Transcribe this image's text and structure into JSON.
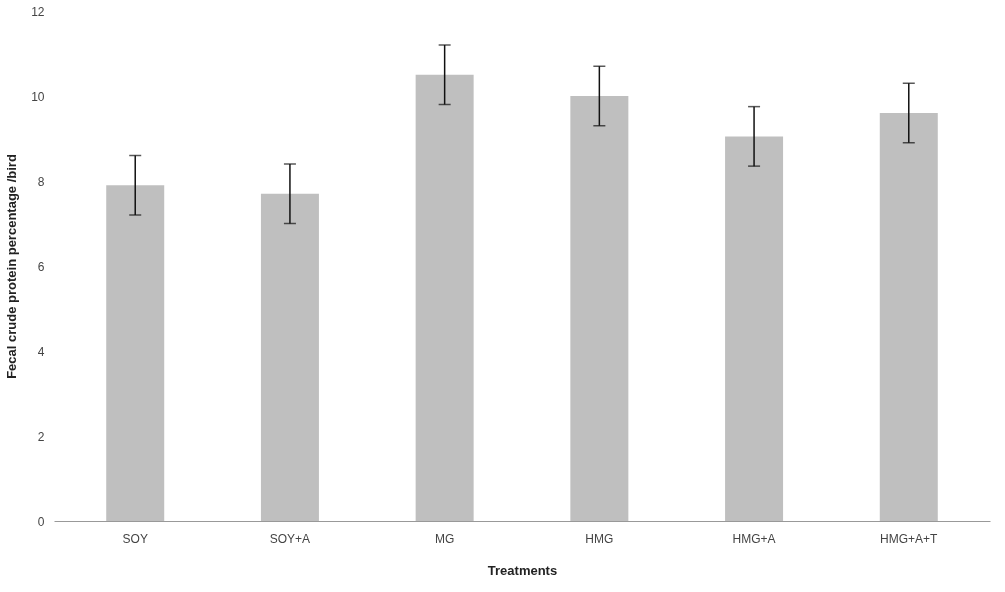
{
  "chart_data": {
    "type": "bar",
    "xlabel": "Treatments",
    "ylabel": "Fecal crude protein percentage /bird",
    "categories": [
      "SOY",
      "SOY+A",
      "MG",
      "HMG",
      "HMG+A",
      "HMG+A+T"
    ],
    "values": [
      7.9,
      7.7,
      10.5,
      10.0,
      9.05,
      9.6
    ],
    "errors": [
      0.7,
      0.7,
      0.7,
      0.7,
      0.7,
      0.7
    ],
    "color": "#bfbfbf",
    "ylim": [
      0,
      12
    ],
    "yticks": [
      0,
      2,
      4,
      6,
      8,
      10,
      12
    ],
    "grid": false
  }
}
